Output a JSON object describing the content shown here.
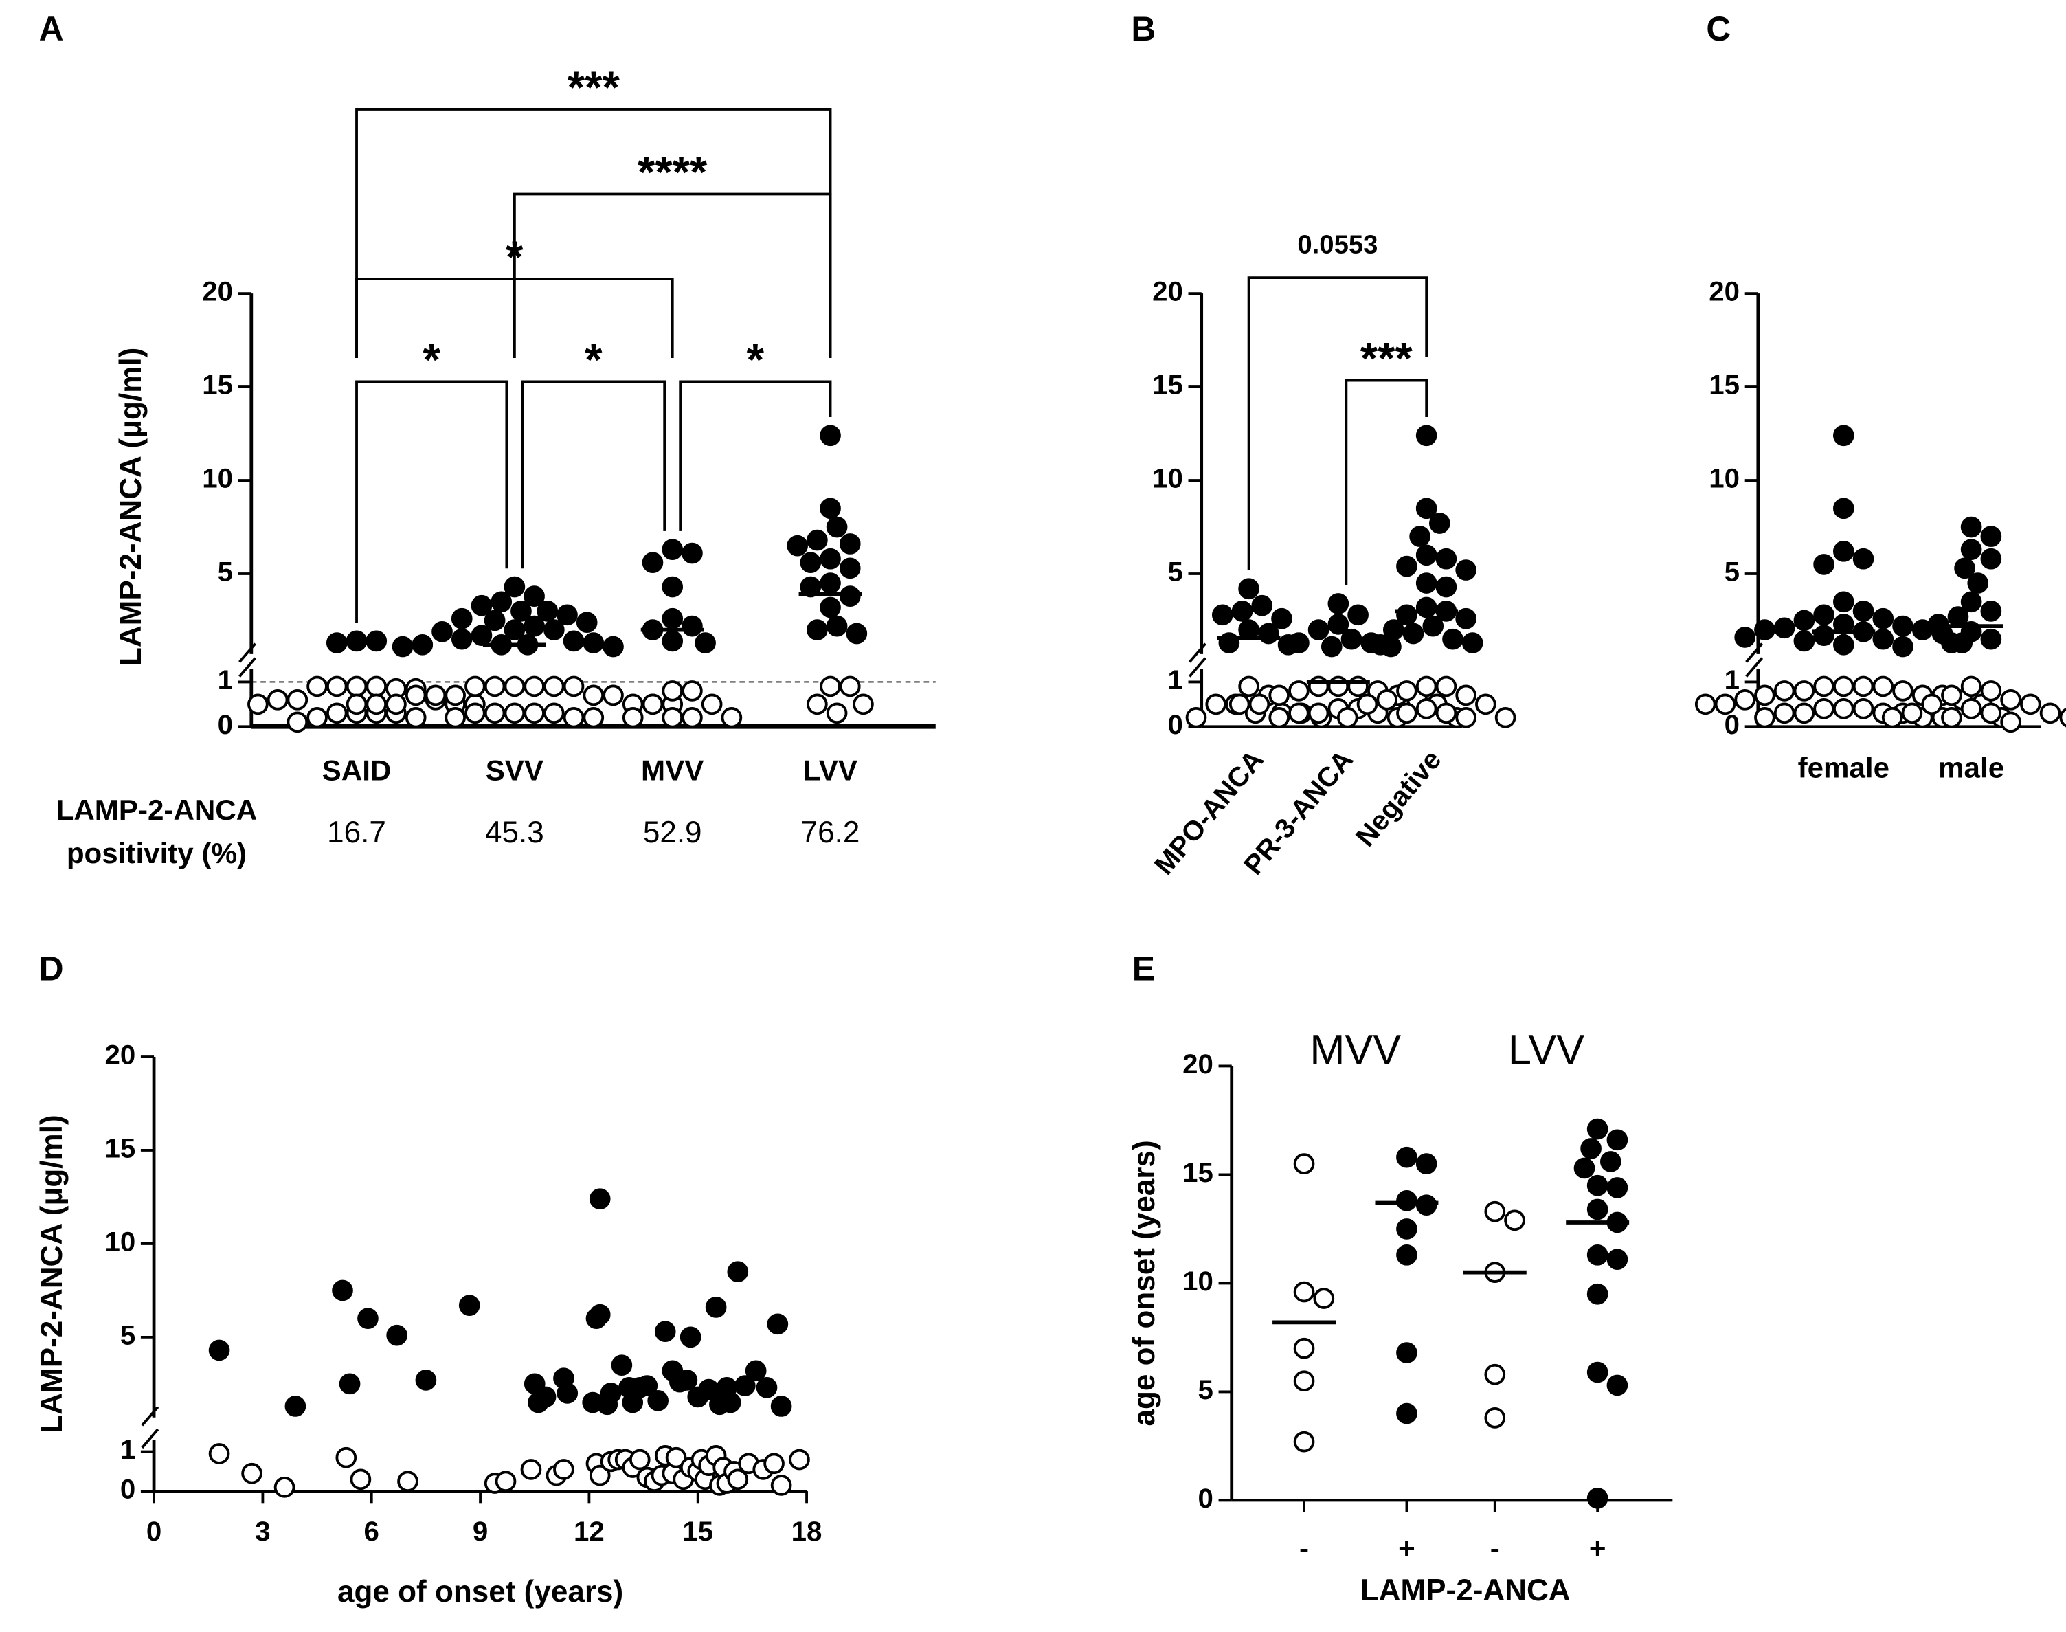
{
  "chart_data": [
    {
      "type": "dot",
      "panel": "A",
      "ylabel": "LAMP-2-ANCA (μg/ml)",
      "categories": [
        "SAID",
        "SVV",
        "MVV",
        "LVV"
      ],
      "values": [
        [
          1.4,
          1.4,
          1.3,
          0.9,
          0.9,
          0.9,
          0.85,
          0.9,
          0.85,
          0.6,
          0.6,
          0.6,
          0.5,
          0.5,
          0.3,
          0.3,
          0.3,
          0.3,
          0.2,
          0.2,
          0.1,
          0.5
        ],
        [
          4.3,
          3.8,
          3.5,
          3.3,
          3.0,
          3.0,
          2.8,
          2.6,
          2.5,
          2.4,
          2.2,
          2.0,
          2.0,
          1.9,
          1.7,
          1.5,
          1.4,
          1.3,
          1.2,
          1.2,
          1.2,
          1.1,
          1.1,
          0.9,
          0.9,
          0.9,
          0.9,
          0.9,
          0.9,
          0.7,
          0.7,
          0.7,
          0.7,
          0.7,
          0.5,
          0.5,
          0.5,
          0.5,
          0.5,
          0.5,
          0.3,
          0.3,
          0.3,
          0.3,
          0.3,
          0.2,
          0.2,
          0.2
        ],
        [
          6.3,
          6.1,
          5.6,
          4.3,
          2.6,
          2.2,
          2.0,
          1.4,
          1.3,
          0.8,
          0.8,
          0.5,
          0.5,
          0.2,
          0.2,
          0.2,
          0.2
        ],
        [
          12.4,
          8.5,
          7.5,
          6.8,
          6.6,
          6.5,
          5.8,
          5.6,
          5.3,
          4.5,
          4.3,
          3.8,
          3.2,
          2.2,
          2.0,
          1.8,
          0.9,
          0.9,
          0.5,
          0.5,
          0.3
        ]
      ],
      "medians": [
        null,
        1.2,
        2.0,
        3.9
      ],
      "ysegments": [
        {
          "lim": [
            0,
            1.3
          ],
          "ticks": [
            0,
            1
          ]
        },
        {
          "lim": [
            0.7,
            20
          ],
          "ticks": [
            5,
            10,
            15,
            20
          ]
        }
      ],
      "ybreak": 1,
      "cutoff": 1,
      "comparisons": [
        {
          "groups": [
            0,
            3
          ],
          "label": "***"
        },
        {
          "groups": [
            1,
            3
          ],
          "label": "****"
        },
        {
          "groups": [
            0,
            2
          ],
          "label": "*"
        },
        {
          "groups": [
            0,
            1
          ],
          "label": "*"
        },
        {
          "groups": [
            1,
            2
          ],
          "label": "*"
        },
        {
          "groups": [
            2,
            3
          ],
          "label": "*"
        }
      ],
      "positivity_label": [
        "LAMP-2-ANCA",
        "positivity (%)"
      ],
      "positivity": [
        16.7,
        45.3,
        52.9,
        76.2
      ]
    },
    {
      "type": "dot",
      "panel": "B",
      "categories": [
        "MPO-ANCA",
        "PR-3-ANCA",
        "Negative"
      ],
      "values": [
        [
          4.2,
          3.3,
          3.0,
          2.8,
          2.6,
          2.0,
          1.8,
          1.3,
          1.2,
          0.9,
          0.7,
          0.5,
          0.5,
          0.3,
          0.3,
          0.3,
          0.2,
          0.2
        ],
        [
          3.4,
          2.8,
          2.3,
          2.0,
          1.5,
          1.3,
          1.3,
          1.1,
          1.1,
          0.9,
          0.9,
          0.9,
          0.8,
          0.8,
          0.7,
          0.7,
          0.6,
          0.5,
          0.5,
          0.5,
          0.4,
          0.4,
          0.3,
          0.3,
          0.3,
          0.2,
          0.2,
          0.2
        ],
        [
          12.4,
          8.5,
          7.7,
          7.0,
          6.0,
          5.8,
          5.4,
          5.2,
          4.5,
          4.3,
          3.2,
          3.0,
          2.8,
          2.6,
          2.2,
          2.0,
          1.8,
          1.5,
          1.3,
          1.2,
          0.9,
          0.9,
          0.8,
          0.7,
          0.6,
          0.5,
          0.5,
          0.4,
          0.3,
          0.3,
          0.2,
          0.2,
          0.2
        ]
      ],
      "medians": [
        1.55,
        1.0,
        3.0
      ],
      "ysegments": [
        {
          "lim": [
            0,
            1.3
          ],
          "ticks": [
            0,
            1
          ]
        },
        {
          "lim": [
            0.7,
            20
          ],
          "ticks": [
            5,
            10,
            15,
            20
          ]
        }
      ],
      "ybreak": 1,
      "comparisons": [
        {
          "groups": [
            0,
            2
          ],
          "label": "0.0553"
        },
        {
          "groups": [
            1,
            2
          ],
          "label": "***"
        }
      ]
    },
    {
      "type": "dot",
      "panel": "C",
      "categories": [
        "female",
        "male"
      ],
      "values": [
        [
          12.4,
          8.5,
          6.2,
          5.8,
          5.5,
          3.5,
          3.0,
          2.8,
          2.6,
          2.5,
          2.3,
          2.2,
          2.1,
          2.0,
          2.0,
          1.9,
          1.8,
          1.7,
          1.6,
          1.5,
          1.4,
          1.3,
          1.2,
          1.1,
          0.9,
          0.9,
          0.9,
          0.9,
          0.8,
          0.8,
          0.8,
          0.7,
          0.7,
          0.7,
          0.6,
          0.6,
          0.5,
          0.5,
          0.5,
          0.4,
          0.4,
          0.4,
          0.3,
          0.3,
          0.3,
          0.3,
          0.2,
          0.2,
          0.2,
          0.2
        ],
        [
          7.5,
          7.0,
          6.3,
          5.8,
          5.3,
          4.5,
          3.5,
          3.0,
          2.7,
          2.3,
          1.9,
          1.5,
          1.3,
          0.9,
          0.8,
          0.7,
          0.6,
          0.5,
          0.5,
          0.4,
          0.3,
          0.3,
          0.3,
          0.2,
          0.2,
          0.2,
          0.1
        ]
      ],
      "medians": [
        1.9,
        2.2
      ],
      "ysegments": [
        {
          "lim": [
            0,
            1.3
          ],
          "ticks": [
            0,
            1
          ]
        },
        {
          "lim": [
            0.7,
            20
          ],
          "ticks": [
            5,
            10,
            15,
            20
          ]
        }
      ],
      "ybreak": 1
    },
    {
      "type": "scatter",
      "panel": "D",
      "ylabel": "LAMP-2-ANCA (μg/ml)",
      "xlabel": "age of onset (years)",
      "x": [
        1.8,
        3.9,
        5.2,
        5.4,
        5.9,
        6.7,
        7.5,
        8.7,
        10.5,
        10.6,
        10.8,
        11.3,
        11.4,
        12.1,
        12.2,
        12.3,
        12.3,
        12.5,
        12.6,
        12.9,
        13.1,
        13.2,
        13.4,
        13.6,
        13.9,
        14.1,
        14.3,
        14.5,
        14.7,
        14.8,
        15.0,
        15.3,
        15.5,
        15.6,
        15.8,
        15.9,
        16.1,
        16.3,
        16.6,
        16.9,
        17.2,
        17.3,
        1.8,
        2.7,
        3.6,
        5.3,
        5.7,
        7.0,
        9.4,
        9.7,
        10.4,
        11.1,
        11.3,
        12.2,
        12.3,
        12.6,
        12.8,
        13.0,
        13.2,
        13.4,
        13.6,
        13.8,
        14.0,
        14.1,
        14.3,
        14.4,
        14.6,
        14.8,
        15.0,
        15.1,
        15.2,
        15.3,
        15.5,
        15.6,
        15.7,
        15.8,
        16.0,
        16.1,
        16.4,
        16.8,
        17.1,
        17.3,
        17.8
      ],
      "y": [
        4.3,
        1.3,
        7.5,
        2.5,
        6.0,
        5.1,
        2.7,
        6.7,
        2.5,
        1.5,
        1.8,
        2.8,
        2.0,
        1.5,
        6.0,
        6.2,
        12.4,
        1.4,
        2.0,
        3.5,
        2.3,
        1.5,
        2.3,
        2.4,
        1.6,
        5.3,
        3.2,
        2.6,
        2.7,
        5.0,
        1.8,
        2.2,
        6.6,
        1.4,
        2.3,
        1.5,
        8.5,
        2.4,
        3.2,
        2.3,
        5.7,
        1.3,
        0.95,
        0.45,
        0.1,
        0.85,
        0.3,
        0.25,
        0.2,
        0.25,
        0.55,
        0.4,
        0.55,
        0.7,
        0.4,
        0.75,
        0.8,
        0.8,
        0.6,
        0.8,
        0.35,
        0.25,
        0.4,
        0.9,
        0.45,
        0.85,
        0.3,
        0.6,
        0.5,
        0.8,
        0.3,
        0.65,
        0.9,
        0.15,
        0.6,
        0.2,
        0.5,
        0.3,
        0.7,
        0.55,
        0.7,
        0.15,
        0.8
      ],
      "xlim": [
        0,
        18
      ],
      "xticks": [
        0,
        3,
        6,
        9,
        12,
        15,
        18
      ],
      "ysegments": [
        {
          "lim": [
            0,
            1.3
          ],
          "ticks": [
            0,
            1
          ]
        },
        {
          "lim": [
            0.7,
            20
          ],
          "ticks": [
            5,
            10,
            15,
            20
          ]
        }
      ],
      "ybreak": 1
    },
    {
      "type": "dot",
      "panel": "E",
      "ylabel": "age of onset (years)",
      "xlabel": "LAMP-2-ANCA",
      "group_labels": [
        {
          "label": "MVV",
          "categories": [
            0,
            1
          ]
        },
        {
          "label": "LVV",
          "categories": [
            2,
            3
          ]
        }
      ],
      "categories": [
        "-",
        "+",
        "-",
        "+"
      ],
      "values": [
        [
          15.5,
          9.6,
          9.3,
          7.0,
          5.5,
          2.7
        ],
        [
          15.8,
          15.5,
          13.8,
          13.6,
          12.5,
          11.3,
          6.8,
          4.0
        ],
        [
          13.3,
          12.9,
          10.5,
          5.8,
          3.8
        ],
        [
          17.1,
          16.6,
          16.2,
          15.6,
          15.3,
          14.5,
          14.4,
          13.4,
          12.8,
          11.3,
          11.1,
          9.5,
          5.9,
          5.3,
          0.1
        ]
      ],
      "medians": [
        8.2,
        13.7,
        10.5,
        12.8
      ],
      "filled": [
        false,
        true,
        false,
        true
      ],
      "ylim": [
        0,
        20
      ],
      "yticks": [
        0,
        5,
        10,
        15,
        20
      ]
    }
  ]
}
